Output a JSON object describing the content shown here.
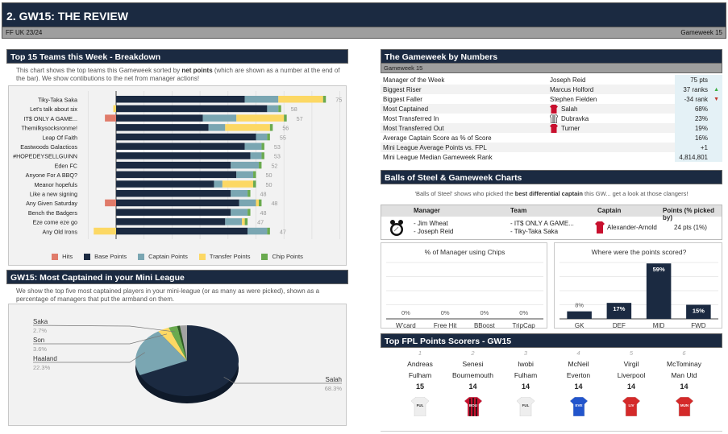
{
  "header": {
    "title": "2. GW15: THE REVIEW",
    "league": "FF UK 23/24",
    "gameweek": "Gameweek 15"
  },
  "top15": {
    "title": "Top 15 Teams this Week - Breakdown",
    "desc_pre": "This chart shows the top teams this Gameweek sorted by ",
    "desc_bold": "net points",
    "desc_post": " (which are shown as a number at the end of the bar). We show contibutions to the net from manager actions!",
    "legend": [
      {
        "key": "hits",
        "label": "Hits",
        "color": "#e07b6a"
      },
      {
        "key": "base",
        "label": "Base Points",
        "color": "#1b2a41"
      },
      {
        "key": "captain",
        "label": "Captain Points",
        "color": "#7aa6b2"
      },
      {
        "key": "transfer",
        "label": "Transfer Points",
        "color": "#fcd864"
      },
      {
        "key": "chip",
        "label": "Chip Points",
        "color": "#6aaa4f"
      }
    ]
  },
  "chart_data": [
    {
      "type": "bar",
      "orientation": "horizontal-stacked",
      "title": "Top 15 Teams this Week - Breakdown",
      "categories": [
        "Tiky-Taka Saka",
        "Let's talk about six",
        "IT$ ONLY A GAME...",
        "Themilkysocksronme!",
        "Leap Of Faith",
        "Eastwoods Galacticos",
        "#HOPEDEYSELLGUINN",
        "Eden FC",
        "Anyone For A BBQ?",
        "Meanor hopefuls",
        "Like a new signing",
        "Any Given Saturday",
        "Bench the Badgers",
        "Eze come eze go",
        "Any Old Irons"
      ],
      "series": [
        {
          "name": "Hits",
          "values": [
            0,
            0,
            -4,
            0,
            0,
            0,
            0,
            0,
            0,
            0,
            0,
            -4,
            0,
            0,
            0
          ]
        },
        {
          "name": "Base Points",
          "values": [
            46,
            54,
            31,
            33,
            50,
            46,
            48,
            41,
            43,
            35,
            41,
            44,
            41,
            39,
            47
          ]
        },
        {
          "name": "Captain Points",
          "values": [
            12,
            4,
            12,
            6,
            4,
            6,
            4,
            10,
            6,
            3,
            6,
            6,
            6,
            6,
            7
          ]
        },
        {
          "name": "Transfer Points",
          "values": [
            16,
            -1,
            17,
            16,
            0,
            0,
            0,
            0,
            0,
            11,
            0,
            1,
            0,
            1,
            -8
          ]
        },
        {
          "name": "Chip Points",
          "values": [
            1,
            1,
            1,
            1,
            1,
            1,
            1,
            1,
            1,
            1,
            1,
            1,
            1,
            1,
            1
          ]
        }
      ],
      "net_labels": [
        75,
        58,
        57,
        56,
        55,
        53,
        53,
        52,
        50,
        50,
        48,
        48,
        48,
        47,
        47
      ],
      "xlim": [
        -10,
        80
      ],
      "grid": true,
      "legend": "bottom"
    },
    {
      "type": "pie",
      "title": "GW15: Most Captained in your Mini League",
      "slices": [
        {
          "name": "Salah",
          "value": 68.3,
          "label": "68.3%",
          "color": "#1b2a41"
        },
        {
          "name": "Haaland",
          "value": 22.3,
          "label": "22.3%",
          "color": "#7aa6b2"
        },
        {
          "name": "Son",
          "value": 3.6,
          "label": "3.6%",
          "color": "#fcd864"
        },
        {
          "name": "Saka",
          "value": 2.7,
          "label": "2.7%",
          "color": "#6aaa4f"
        },
        {
          "name": "",
          "value": 0.9,
          "label": "",
          "color": "#2e5b24"
        },
        {
          "name": "",
          "value": 2.2,
          "label": "",
          "color": "#a3a3a3"
        }
      ]
    },
    {
      "type": "bar",
      "title": "% of Manager using Chips",
      "categories": [
        "W'card",
        "Free Hit",
        "BBoost",
        "TripCap"
      ],
      "values": [
        0,
        0,
        0,
        0
      ],
      "labels": [
        "0%",
        "0%",
        "0%",
        "0%"
      ],
      "ylim": [
        0,
        100
      ]
    },
    {
      "type": "bar",
      "title": "Where were the points scored?",
      "categories": [
        "GK",
        "DEF",
        "MID",
        "FWD"
      ],
      "values": [
        8,
        17,
        59,
        15
      ],
      "labels": [
        "8%",
        "17%",
        "59%",
        "15%"
      ],
      "ylim": [
        0,
        60
      ]
    }
  ],
  "captained": {
    "title": "GW15: Most Captained in your Mini League",
    "desc": "We show the top five most captained players in your mini-league (or as many as were picked), shown as a percentage of managers that put the armband on them."
  },
  "numbers": {
    "title": "The Gameweek by Numbers",
    "subtitle": "Gameweek 15",
    "rows": [
      {
        "label": "Manager of the Week",
        "who": "Joseph Reid",
        "value": "75 pts",
        "icon": "",
        "arrow": ""
      },
      {
        "label": "Biggest Riser",
        "who": "Marcus Holford",
        "value": "37 ranks",
        "icon": "",
        "arrow": "up"
      },
      {
        "label": "Biggest Faller",
        "who": "Stephen Fielden",
        "value": "-34 rank",
        "icon": "",
        "arrow": "down"
      },
      {
        "label": "Most Captained",
        "who": "Salah",
        "value": "68%",
        "icon": "red-shirt",
        "arrow": ""
      },
      {
        "label": "Most Transferred In",
        "who": "Dubravka",
        "value": "23%",
        "icon": "striped-shirt",
        "arrow": ""
      },
      {
        "label": "Most Transferred Out",
        "who": "Turner",
        "value": "19%",
        "icon": "red-shirt",
        "arrow": ""
      },
      {
        "label": "Average Captain Score as % of Score",
        "who": "",
        "value": "16%",
        "icon": "",
        "arrow": ""
      },
      {
        "label": "Mini League Average Points vs. FPL",
        "who": "",
        "value": "+1",
        "icon": "",
        "arrow": ""
      },
      {
        "label": "Mini League Median Gameweek Rank",
        "who": "",
        "value": "4,814,801",
        "icon": "",
        "arrow": ""
      }
    ],
    "arrow_glyphs": {
      "up": "▲",
      "down": "▼"
    },
    "arrow_colors": {
      "up": "#3cb043",
      "down": "#c0392b"
    }
  },
  "balls": {
    "title": "Balls of Steel & Gameweek Charts",
    "desc_pre": "'Balls of Steel' shows who picked the ",
    "desc_bold": "best differential captain",
    "desc_post": " this GW... get a look at those clangers!",
    "headers": {
      "manager": "Manager",
      "team": "Team",
      "captain": "Captain",
      "points": "Points (% picked by)"
    },
    "managers": [
      "- Jim Wheat",
      "- Joseph Reid"
    ],
    "teams": [
      "- IT$ ONLY A GAME...",
      "- Tiky-Taka Saka"
    ],
    "captain": "Alexander-Arnold",
    "points": "24 pts (1%)"
  },
  "scorers": {
    "title": "Top FPL Points Scorers - GW15",
    "players": [
      {
        "rank": "1",
        "name": "Andreas",
        "team": "Fulham",
        "points": "15",
        "kit": "FUL",
        "kit_color": "#eeeeee",
        "kit_text": "#333"
      },
      {
        "rank": "2",
        "name": "Senesi",
        "team": "Bournemouth",
        "points": "14",
        "kit": "BOU",
        "kit_color": "#c8102e",
        "kit_text": "#fff"
      },
      {
        "rank": "3",
        "name": "Iwobi",
        "team": "Fulham",
        "points": "14",
        "kit": "FUL",
        "kit_color": "#eeeeee",
        "kit_text": "#333"
      },
      {
        "rank": "4",
        "name": "McNeil",
        "team": "Everton",
        "points": "14",
        "kit": "EVE",
        "kit_color": "#2255cc",
        "kit_text": "#fff"
      },
      {
        "rank": "5",
        "name": "Virgil",
        "team": "Liverpool",
        "points": "14",
        "kit": "LIV",
        "kit_color": "#d42a2a",
        "kit_text": "#fff"
      },
      {
        "rank": "6",
        "name": "McTominay",
        "team": "Man Utd",
        "points": "14",
        "kit": "MUN",
        "kit_color": "#d42a2a",
        "kit_text": "#fff"
      }
    ]
  }
}
